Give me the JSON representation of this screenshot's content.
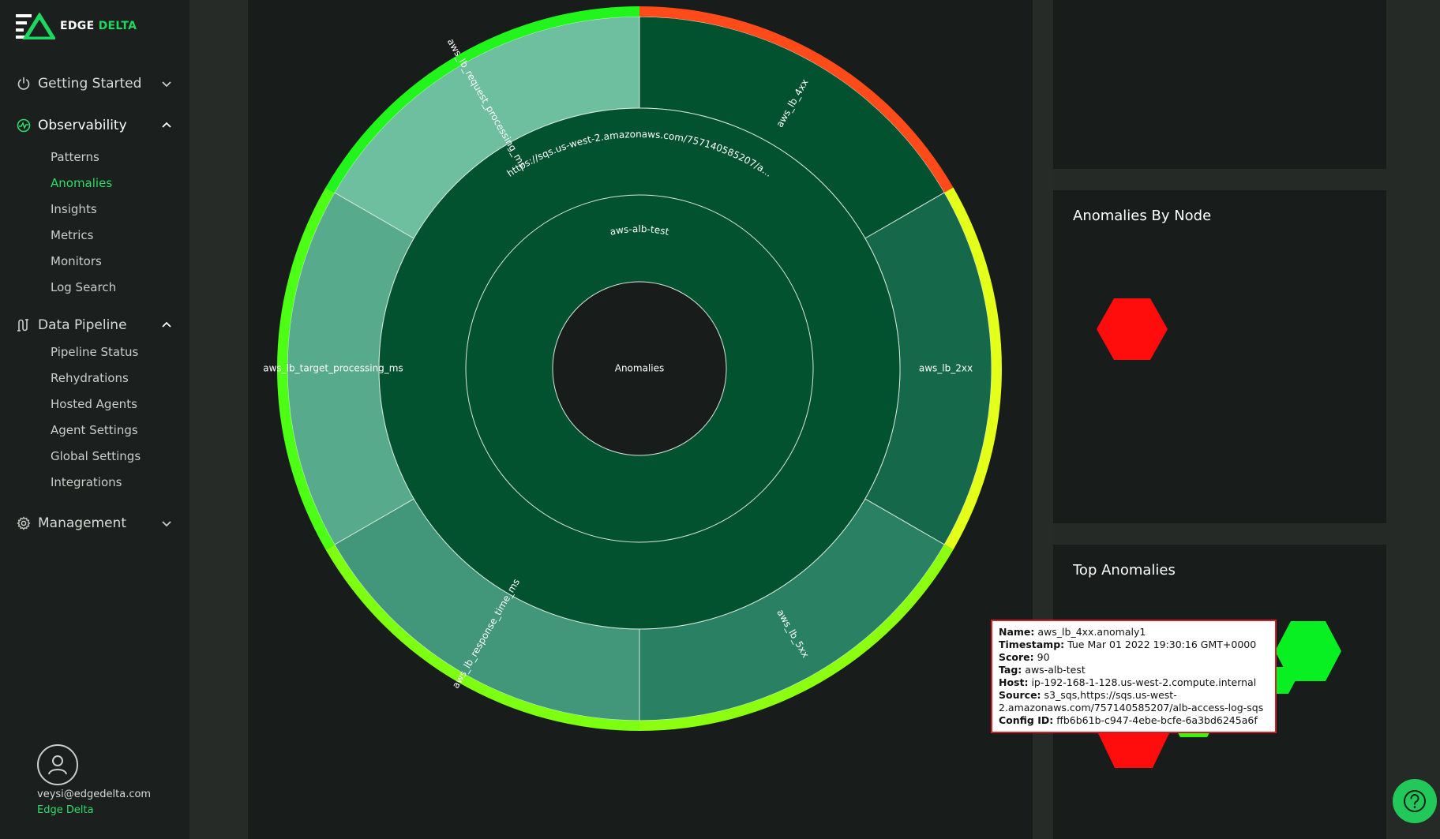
{
  "brand": {
    "name_part1": "EDGE",
    "name_part2": "DELTA",
    "accent_color": "#1ed760"
  },
  "sidebar": {
    "sections": [
      {
        "label": "Getting Started",
        "icon": "power-icon",
        "expanded": false
      },
      {
        "label": "Observability",
        "icon": "activity-icon",
        "expanded": true,
        "items": [
          "Patterns",
          "Anomalies",
          "Insights",
          "Metrics",
          "Monitors",
          "Log Search"
        ],
        "current": "Anomalies"
      },
      {
        "label": "Data Pipeline",
        "icon": "pipeline-icon",
        "expanded": true,
        "items": [
          "Pipeline Status",
          "Rehydrations",
          "Hosted Agents",
          "Agent Settings",
          "Global Settings",
          "Integrations"
        ]
      },
      {
        "label": "Management",
        "icon": "gear-icon",
        "expanded": false
      }
    ],
    "user": {
      "email": "veysi@edgedelta.com",
      "org": "Edge Delta"
    }
  },
  "sunburst": {
    "center_label": "Anomalies",
    "tag_ring_label": "aws-alb-test",
    "source_ring_label": "https://sqs.us-west-2.amazonaws.com/757140585207/a...",
    "segments": [
      {
        "label": "aws_lb_4xx",
        "score_color": "#ff4a1a",
        "fill": "#02522f"
      },
      {
        "label": "aws_lb_2xx",
        "score_color": "#e4ff1a",
        "fill": "#16684a"
      },
      {
        "label": "aws_lb_5xx",
        "score_color": "#8cff10",
        "fill": "#2a8062"
      },
      {
        "label": "aws_lb_response_time_ms",
        "score_color": "#7cff10",
        "fill": "#42967a"
      },
      {
        "label": "aws_lb_target_processing_ms",
        "score_color": "#4cff14",
        "fill": "#58aa8c"
      },
      {
        "label": "aws_lb_request_processing_ms",
        "score_color": "#22f51c",
        "fill": "#6ebfa0"
      }
    ]
  },
  "cards": {
    "by_node_title": "Anomalies By Node",
    "top_title": "Top Anomalies"
  },
  "tooltip": {
    "name_label": "Name:",
    "name_value": "aws_lb_4xx.anomaly1",
    "timestamp_label": "Timestamp:",
    "timestamp_value": "Tue Mar 01 2022 19:30:16 GMT+0000",
    "score_label": "Score:",
    "score_value": "90",
    "tag_label": "Tag:",
    "tag_value": "aws-alb-test",
    "host_label": "Host:",
    "host_value": "ip-192-168-1-128.us-west-2.compute.internal",
    "source_label": "Source:",
    "source_value": "s3_sqs,https://sqs.us-west-2.amazonaws.com/757140585207/alb-access-log-sqs",
    "config_label": "Config ID:",
    "config_value": "ffb6b61b-c947-4ebe-bcfe-6a3bd6245a6f"
  },
  "help": {
    "icon": "question-icon"
  }
}
